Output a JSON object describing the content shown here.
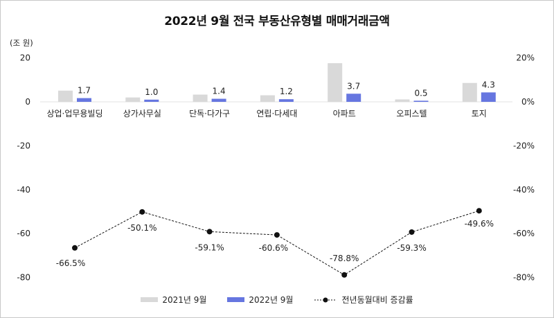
{
  "title": "2022년 9월 전국 부동산유형별 매매거래금액",
  "unit_label": "(조 원)",
  "colors": {
    "bar_2021": "#d9d9d9",
    "bar_2022": "#6676e0",
    "line": "#111111"
  },
  "legend": {
    "series_2021": "2021년 9월",
    "series_2022": "2022년 9월",
    "series_yoy": "전년동월대비 증감률"
  },
  "left_axis_ticks": [
    "20",
    "0",
    "-20",
    "-40",
    "-60",
    "-80"
  ],
  "right_axis_ticks": [
    "20%",
    "0%",
    "-20%",
    "-40%",
    "-60%",
    "-80%"
  ],
  "chart_data": {
    "type": "bar+line",
    "title": "2022년 9월 전국 부동산유형별 매매거래금액",
    "ylabel": "(조 원)",
    "y2label": "%",
    "ylim": [
      -80,
      20
    ],
    "y2lim": [
      -80,
      20
    ],
    "grid": false,
    "legend_position": "bottom",
    "categories": [
      "상업·업무용빌딩",
      "상가사무실",
      "단독·다가구",
      "연립·다세대",
      "아파트",
      "오피스텔",
      "토지"
    ],
    "series": [
      {
        "name": "2021년 9월",
        "type": "bar",
        "axis": "left",
        "values": [
          5.1,
          2.0,
          3.3,
          3.0,
          17.6,
          1.1,
          8.6
        ]
      },
      {
        "name": "2022년 9월",
        "type": "bar",
        "axis": "left",
        "values": [
          1.7,
          1.0,
          1.4,
          1.2,
          3.7,
          0.5,
          4.3
        ],
        "labels": [
          "1.7",
          "1.0",
          "1.4",
          "1.2",
          "3.7",
          "0.5",
          "4.3"
        ]
      },
      {
        "name": "전년동월대비 증감률",
        "type": "line",
        "axis": "right",
        "style": "dashed",
        "values": [
          -66.5,
          -50.1,
          -59.1,
          -60.6,
          -78.8,
          -59.3,
          -49.6
        ],
        "labels": [
          "-66.5%",
          "-50.1%",
          "-59.1%",
          "-60.6%",
          "-78.8%",
          "-59.3%",
          "-49.6%"
        ]
      }
    ]
  }
}
